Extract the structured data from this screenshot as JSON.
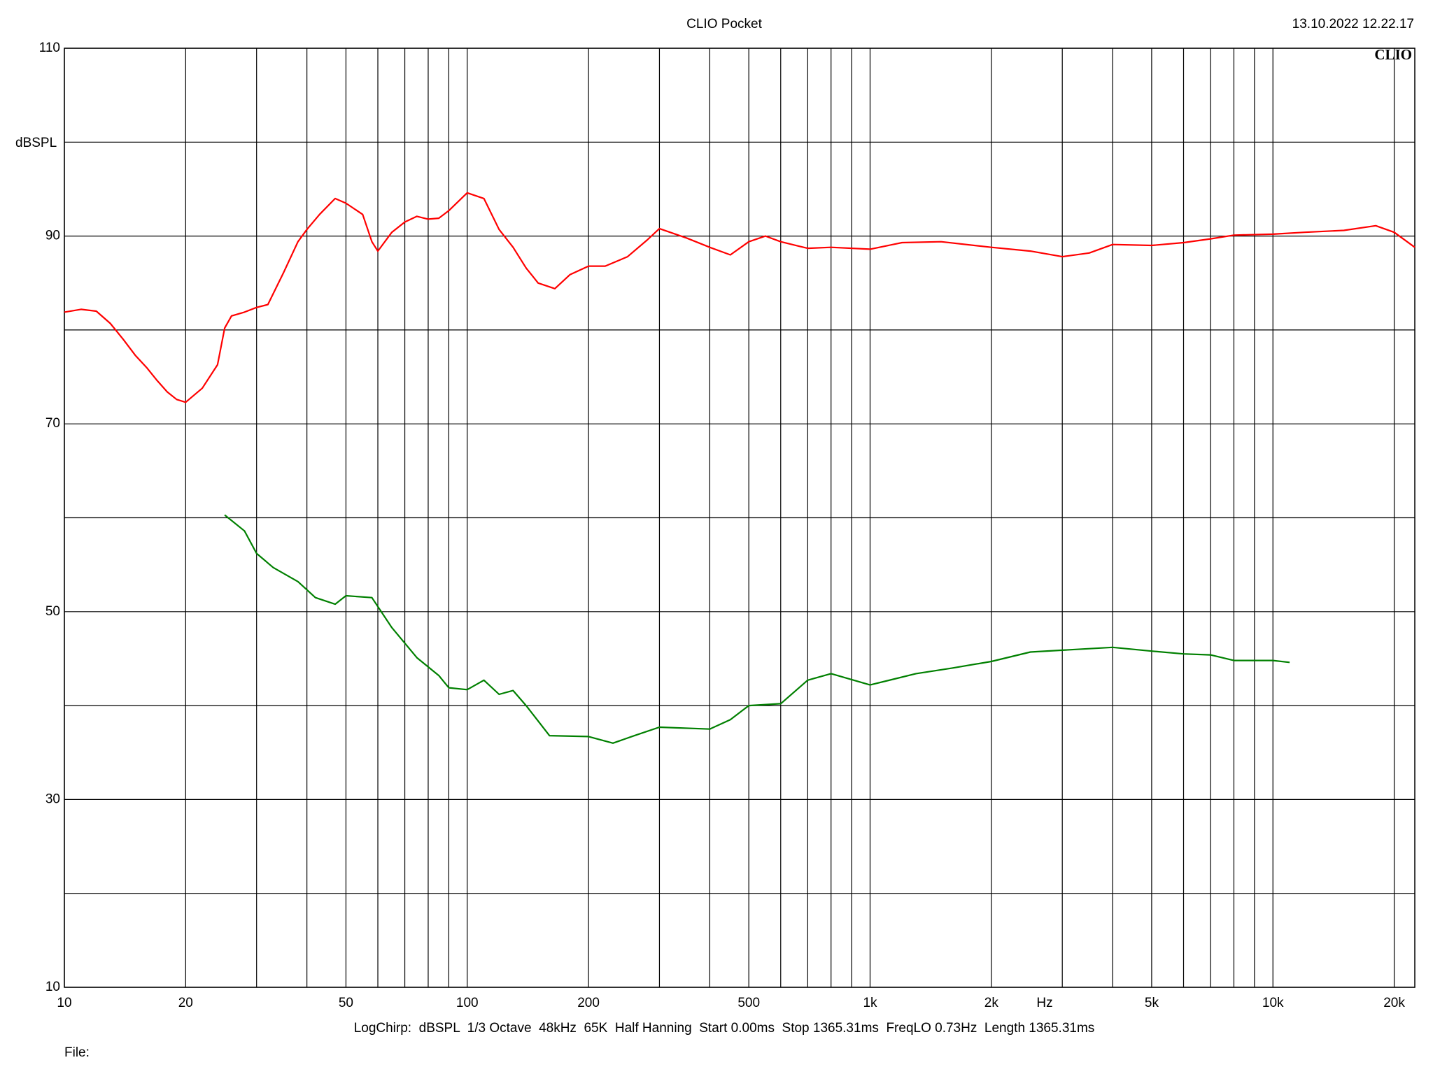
{
  "chart_data": {
    "type": "line",
    "title": "CLIO Pocket",
    "timestamp": "13.10.2022 12.22.17",
    "logo": "CLIO",
    "y_label": "dBSPL",
    "x_label": "Hz",
    "footer": "LogChirp:  dBSPL  1/3 Octave  48kHz  65K  Half Hanning  Start 0.00ms  Stop 1365.31ms  FreqLO 0.73Hz  Length 1365.31ms",
    "file_label": "File:",
    "x_log": true,
    "grid": true,
    "xlim": [
      10,
      22500
    ],
    "ylim": [
      10,
      110
    ],
    "xticks": [
      10,
      20,
      50,
      100,
      200,
      500,
      {
        "value": 1000,
        "label": "1k"
      },
      {
        "value": 2000,
        "label": "2k"
      },
      {
        "value": 5000,
        "label": "5k"
      },
      {
        "value": 10000,
        "label": "10k"
      },
      {
        "value": 20000,
        "label": "20k"
      }
    ],
    "xgrid_minor": [
      30,
      40,
      60,
      70,
      80,
      90,
      300,
      400,
      600,
      700,
      800,
      900,
      3000,
      4000,
      6000,
      7000,
      8000,
      9000
    ],
    "yticks": [
      10,
      30,
      50,
      70,
      90,
      110
    ],
    "ygrid_minor": [
      20,
      40,
      60,
      80,
      100
    ],
    "series": [
      {
        "color": "#ff0000",
        "x": [
          10,
          11,
          12,
          13,
          14,
          15,
          16,
          17,
          18,
          19,
          20,
          22,
          24,
          25,
          26,
          28,
          30,
          32,
          35,
          38,
          40,
          43,
          47,
          50,
          55,
          58,
          60,
          65,
          70,
          75,
          80,
          85,
          90,
          100,
          110,
          120,
          130,
          140,
          150,
          165,
          180,
          200,
          220,
          250,
          280,
          300,
          350,
          400,
          450,
          500,
          550,
          600,
          700,
          800,
          1000,
          1200,
          1500,
          2000,
          2500,
          3000,
          3500,
          4000,
          5000,
          6000,
          7000,
          8000,
          10000,
          12000,
          15000,
          18000,
          20000,
          22500
        ],
        "values": [
          81.9,
          82.2,
          82.0,
          80.7,
          79.0,
          77.3,
          76.0,
          74.6,
          73.4,
          72.6,
          72.3,
          73.8,
          76.3,
          80.2,
          81.5,
          81.9,
          82.4,
          82.7,
          86.1,
          89.4,
          90.7,
          92.3,
          94.0,
          93.5,
          92.3,
          89.4,
          88.4,
          90.4,
          91.5,
          92.1,
          91.8,
          91.9,
          92.7,
          94.6,
          94.0,
          90.7,
          88.8,
          86.6,
          85.0,
          84.4,
          85.9,
          86.8,
          86.8,
          87.8,
          89.6,
          90.8,
          89.8,
          88.8,
          88.0,
          89.4,
          90.0,
          89.4,
          88.7,
          88.8,
          88.6,
          89.3,
          89.4,
          88.8,
          88.4,
          87.8,
          88.2,
          89.1,
          89.0,
          89.3,
          89.7,
          90.1,
          90.2,
          90.4,
          90.6,
          91.1,
          90.4,
          88.8
        ]
      },
      {
        "color": "#008000",
        "x": [
          25,
          28,
          30,
          33,
          38,
          42,
          47,
          50,
          58,
          65,
          75,
          85,
          90,
          100,
          110,
          120,
          130,
          140,
          160,
          200,
          230,
          260,
          300,
          400,
          450,
          500,
          600,
          700,
          800,
          1000,
          1300,
          1600,
          2000,
          2500,
          3000,
          4000,
          5000,
          6000,
          7000,
          8000,
          10000,
          11000
        ],
        "values": [
          60.3,
          58.6,
          56.2,
          54.7,
          53.2,
          51.5,
          50.8,
          51.7,
          51.5,
          48.3,
          45.1,
          43.2,
          41.9,
          41.7,
          42.7,
          41.2,
          41.6,
          40.0,
          36.8,
          36.7,
          36.0,
          36.8,
          37.7,
          37.5,
          38.5,
          40.0,
          40.2,
          42.7,
          43.4,
          42.2,
          43.4,
          44.0,
          44.7,
          45.7,
          45.9,
          46.2,
          45.8,
          45.5,
          45.4,
          44.8,
          44.8,
          44.6
        ]
      }
    ]
  }
}
